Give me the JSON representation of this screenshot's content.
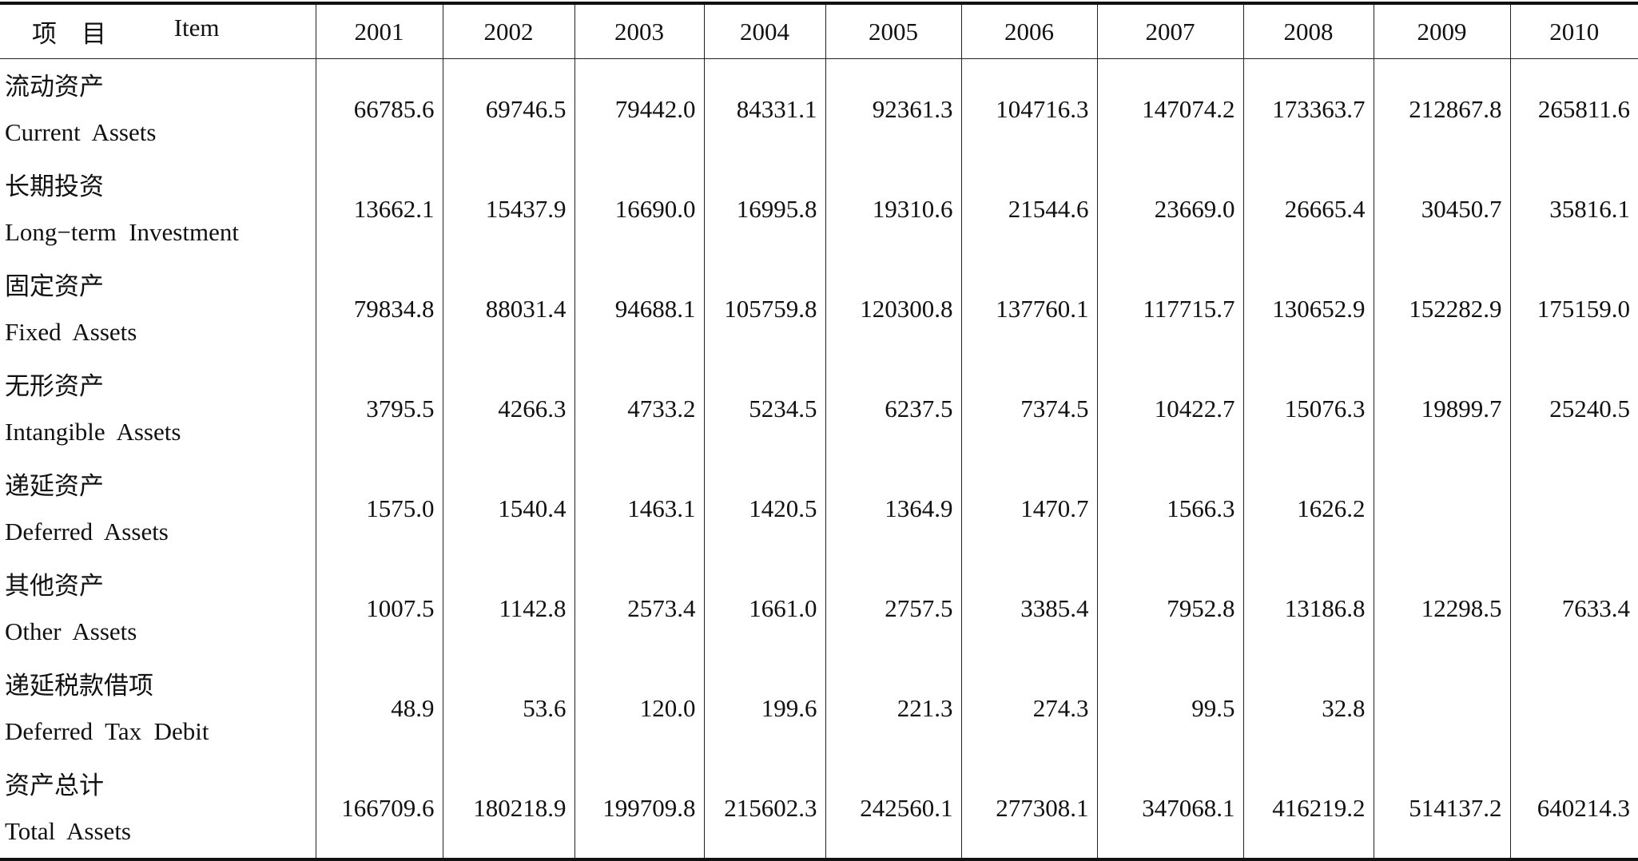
{
  "header": {
    "item_cn": "项　目",
    "item_en": "Item",
    "years": [
      "2001",
      "2002",
      "2003",
      "2004",
      "2005",
      "2006",
      "2007",
      "2008",
      "2009",
      "2010"
    ]
  },
  "table": {
    "rows": [
      {
        "cn": "流动资产",
        "en": "Current  Assets",
        "values": [
          "66785.6",
          "69746.5",
          "79442.0",
          "84331.1",
          "92361.3",
          "104716.3",
          "147074.2",
          "173363.7",
          "212867.8",
          "265811.6"
        ]
      },
      {
        "cn": "长期投资",
        "en": "Long−term  Investment",
        "values": [
          "13662.1",
          "15437.9",
          "16690.0",
          "16995.8",
          "19310.6",
          "21544.6",
          "23669.0",
          "26665.4",
          "30450.7",
          "35816.1"
        ]
      },
      {
        "cn": "固定资产",
        "en": "Fixed  Assets",
        "values": [
          "79834.8",
          "88031.4",
          "94688.1",
          "105759.8",
          "120300.8",
          "137760.1",
          "117715.7",
          "130652.9",
          "152282.9",
          "175159.0"
        ]
      },
      {
        "cn": "无形资产",
        "en": "Intangible  Assets",
        "values": [
          "3795.5",
          "4266.3",
          "4733.2",
          "5234.5",
          "6237.5",
          "7374.5",
          "10422.7",
          "15076.3",
          "19899.7",
          "25240.5"
        ]
      },
      {
        "cn": "递延资产",
        "en": "Deferred  Assets",
        "values": [
          "1575.0",
          "1540.4",
          "1463.1",
          "1420.5",
          "1364.9",
          "1470.7",
          "1566.3",
          "1626.2",
          null,
          null
        ]
      },
      {
        "cn": "其他资产",
        "en": "Other  Assets",
        "values": [
          "1007.5",
          "1142.8",
          "2573.4",
          "1661.0",
          "2757.5",
          "3385.4",
          "7952.8",
          "13186.8",
          "12298.5",
          "7633.4"
        ]
      },
      {
        "cn": "递延税款借项",
        "en": "Deferred  Tax  Debit",
        "values": [
          "48.9",
          "53.6",
          "120.0",
          "199.6",
          "221.3",
          "274.3",
          "99.5",
          "32.8",
          null,
          null
        ]
      },
      {
        "cn": "资产总计",
        "en": "Total  Assets",
        "values": [
          "166709.6",
          "180218.9",
          "199709.8",
          "215602.3",
          "242560.1",
          "277308.1",
          "347068.1",
          "416219.2",
          "514137.2",
          "640214.3"
        ]
      }
    ]
  }
}
